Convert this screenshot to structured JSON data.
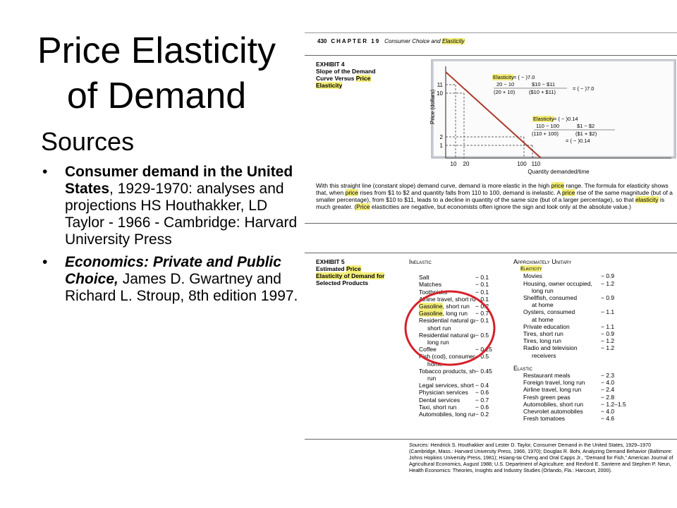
{
  "slide": {
    "title_line1": "Price Elasticity",
    "title_line2": "of Demand",
    "sources_heading": "Sources",
    "bullet": "•",
    "ref1": {
      "bold": "Consumer demand in the United States",
      "rest": ", 1929-1970: analyses and projections HS Houthakker, LD Taylor - 1966 - Cambridge: Harvard University Press"
    },
    "ref2": {
      "bold": "Economics: Private and Public Choice,",
      "rest": " James D. Gwartney and Richard L. Stroup, 8th edition 1997."
    }
  },
  "book": {
    "page_num": "430",
    "chapter": "CHAPTER 19",
    "chapter_title_a": "Consumer Choice and ",
    "chapter_title_b": "Elasticity",
    "ex4": {
      "l1": "EXHIBIT 4",
      "l2": "Slope of the Demand",
      "l3a": "Curve Versus ",
      "l3b": "Price",
      "l4": "Elasticity",
      "ylabel": "Price (dollars)",
      "xlabel": "Quantity demanded/time",
      "yt11": "11",
      "yt10": "10",
      "yt2": "2",
      "yt1": "1",
      "xt10": "10",
      "xt20": "20",
      "xt100": "100",
      "xt110": "110",
      "f1a": "Elasticity",
      "f1b": " = ( − )7.0",
      "f1n1": "20 − 10",
      "f1n2": "$10 − $11",
      "f1d1": "(20 + 10)",
      "f1d2": "($10 + $11)",
      "f1r": "= ( − )7.0",
      "f2a": "Elasticity",
      "f2b": " = ( − )0.14",
      "f2n1": "110 − 100",
      "f2n2": "$1 − $2",
      "f2d1": "(110 + 100)",
      "f2d2": "($1 + $2)",
      "f2r": "= ( − )0.14",
      "cap1": "With this straight line (constant slope) demand curve, demand is more elastic in the high ",
      "cap_price1": "price",
      "cap2": " range. The formula for elasticity shows that, when ",
      "cap_price2": "price",
      "cap3": " rises from $1 to $2 and quantity falls from 110 to 100, demand is inelastic. A ",
      "cap_price3": "price",
      "cap4": " rise of the same magnitude (but of a smaller percentage), from $10 to $11, leads to a decline in quantity of the same size (but of a larger percentage), so that ",
      "cap_el": "elasticity",
      "cap5": " is much greater. (",
      "cap_price4": "Price",
      "cap6": " elasticities are negative, but economists often ignore the sign and look only at the absolute value.)"
    },
    "ex5": {
      "l1": "EXHIBIT 5",
      "l2a": "Estimated ",
      "l2b": "Price",
      "l3": "Elasticity of Demand for",
      "l4": "Selected Products",
      "inelastic_head": "Inelastic",
      "unitary_head": "Approximately Unitary",
      "unitary_sub": "Elasticity",
      "elastic_head": "Elastic",
      "inelastic": [
        {
          "name": "Salt",
          "val": "− 0.1"
        },
        {
          "name": "Matches",
          "val": "− 0.1"
        },
        {
          "name": "Toothpicks",
          "val": "− 0.1"
        },
        {
          "name": "Airline travel, short run",
          "val": "− 0.1"
        },
        {
          "name": "Gasoline, short run",
          "val": "− 0.2"
        },
        {
          "name": "Gasoline, long run",
          "val": "− 0.7"
        },
        {
          "name": "Residential natural gas,",
          "val": "− 0.1"
        },
        {
          "name": "short run",
          "val": ""
        },
        {
          "name": "Residential natural gas,",
          "val": "− 0.5"
        },
        {
          "name": "long run",
          "val": ""
        },
        {
          "name": "Coffee",
          "val": "− 0.25"
        },
        {
          "name": "Fish (cod), consumed at",
          "val": "− 0.5"
        },
        {
          "name": "home",
          "val": ""
        },
        {
          "name": "Tobacco products, short",
          "val": "− 0.45"
        },
        {
          "name": "run",
          "val": ""
        },
        {
          "name": "Legal services, short run",
          "val": "− 0.4"
        },
        {
          "name": "Physician services",
          "val": "− 0.6"
        },
        {
          "name": "Dental services",
          "val": "− 0.7"
        },
        {
          "name": "Taxi, short run",
          "val": "− 0.6"
        },
        {
          "name": "Automobiles, long run",
          "val": "− 0.2"
        }
      ],
      "unitary": [
        {
          "name": "Movies",
          "val": "− 0.9"
        },
        {
          "name": "Housing, owner occupied,",
          "val": "− 1.2"
        },
        {
          "name": "long run",
          "val": ""
        },
        {
          "name": "Shellfish, consumed",
          "val": "− 0.9"
        },
        {
          "name": "at home",
          "val": ""
        },
        {
          "name": "Oysters, consumed",
          "val": "− 1.1"
        },
        {
          "name": "at home",
          "val": ""
        },
        {
          "name": "Private education",
          "val": "− 1.1"
        },
        {
          "name": "Tires, short run",
          "val": "− 0.9"
        },
        {
          "name": "Tires, long run",
          "val": "− 1.2"
        },
        {
          "name": "Radio and television",
          "val": "− 1.2"
        },
        {
          "name": "receivers",
          "val": ""
        }
      ],
      "elastic": [
        {
          "name": "Restaurant meals",
          "val": "− 2.3"
        },
        {
          "name": "Foreign travel, long run",
          "val": "− 4.0"
        },
        {
          "name": "Airline travel, long run",
          "val": "− 2.4"
        },
        {
          "name": "Fresh green peas",
          "val": "− 2.8"
        },
        {
          "name": "Automobiles, short run",
          "val": "− 1.2–1.5"
        },
        {
          "name": "Chevrolet automobiles",
          "val": "− 4.0"
        },
        {
          "name": "Fresh tomatoes",
          "val": "− 4.6"
        }
      ],
      "src_label": "Sources:",
      "src_text": " Hendrick S. Houthakker and Lester D. Taylor, Consumer Demand in the United States, 1929–1970 (Cambridge, Mass.: Harvard University Press, 1966, 1970); Douglas R. Bohi, Analyzing Demand Behavior (Baltimore: Johns Hopkins University Press, 1981); Hsiang-tai Cheng and Oral Capps Jr., “Demand for Fish,” American Journal of Agricultural Economics, August 1988; U.S. Department of Agriculture; and Rexford E. Santerre and Stephen P. Neun, Health Economics: Theories, Insights and Industry Studies (Orlando, Fla.: Harcourt, 2000)."
    },
    "colors": {
      "highlight": "#f4ee7a",
      "demand_line": "#b03a2e",
      "circle": "#d6202a",
      "chart_bg": "#cfd2d8"
    }
  }
}
